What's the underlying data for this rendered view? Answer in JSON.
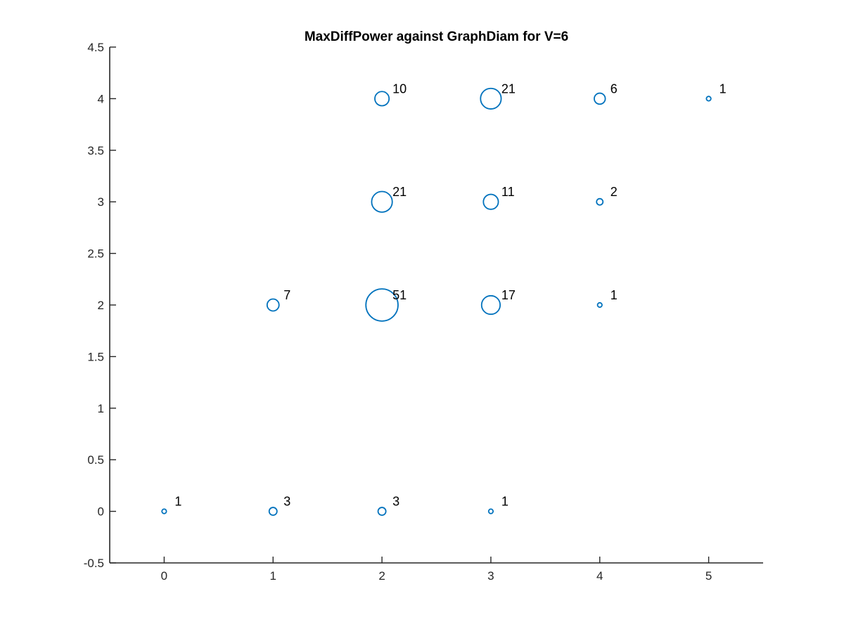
{
  "chart_data": {
    "type": "scatter",
    "title": "MaxDiffPower against GraphDiam for V=6",
    "xlabel": "",
    "ylabel": "",
    "xlim": [
      -0.5,
      5.5
    ],
    "ylim": [
      -0.5,
      4.5
    ],
    "x_ticks": [
      0,
      1,
      2,
      3,
      4,
      5
    ],
    "x_tick_labels": [
      "0",
      "1",
      "2",
      "3",
      "4",
      "5"
    ],
    "y_ticks": [
      -0.5,
      0,
      0.5,
      1,
      1.5,
      2,
      2.5,
      3,
      3.5,
      4,
      4.5
    ],
    "y_tick_labels": [
      "-0.5",
      "0",
      "0.5",
      "1",
      "1.5",
      "2",
      "2.5",
      "3",
      "3.5",
      "4",
      "4.5"
    ],
    "grid": false,
    "marker": "open-circle",
    "marker_color": "#0072bd",
    "size_encodes": "count",
    "points": [
      {
        "x": 0,
        "y": 0,
        "count": 1,
        "label": "1"
      },
      {
        "x": 1,
        "y": 0,
        "count": 3,
        "label": "3"
      },
      {
        "x": 2,
        "y": 0,
        "count": 3,
        "label": "3"
      },
      {
        "x": 3,
        "y": 0,
        "count": 1,
        "label": "1"
      },
      {
        "x": 1,
        "y": 2,
        "count": 7,
        "label": "7"
      },
      {
        "x": 2,
        "y": 2,
        "count": 51,
        "label": "51"
      },
      {
        "x": 3,
        "y": 2,
        "count": 17,
        "label": "17"
      },
      {
        "x": 4,
        "y": 2,
        "count": 1,
        "label": "1"
      },
      {
        "x": 2,
        "y": 3,
        "count": 21,
        "label": "21"
      },
      {
        "x": 3,
        "y": 3,
        "count": 11,
        "label": "11"
      },
      {
        "x": 4,
        "y": 3,
        "count": 2,
        "label": "2"
      },
      {
        "x": 2,
        "y": 4,
        "count": 10,
        "label": "10"
      },
      {
        "x": 3,
        "y": 4,
        "count": 21,
        "label": "21"
      },
      {
        "x": 4,
        "y": 4,
        "count": 6,
        "label": "6"
      },
      {
        "x": 5,
        "y": 4,
        "count": 1,
        "label": "1"
      }
    ]
  }
}
